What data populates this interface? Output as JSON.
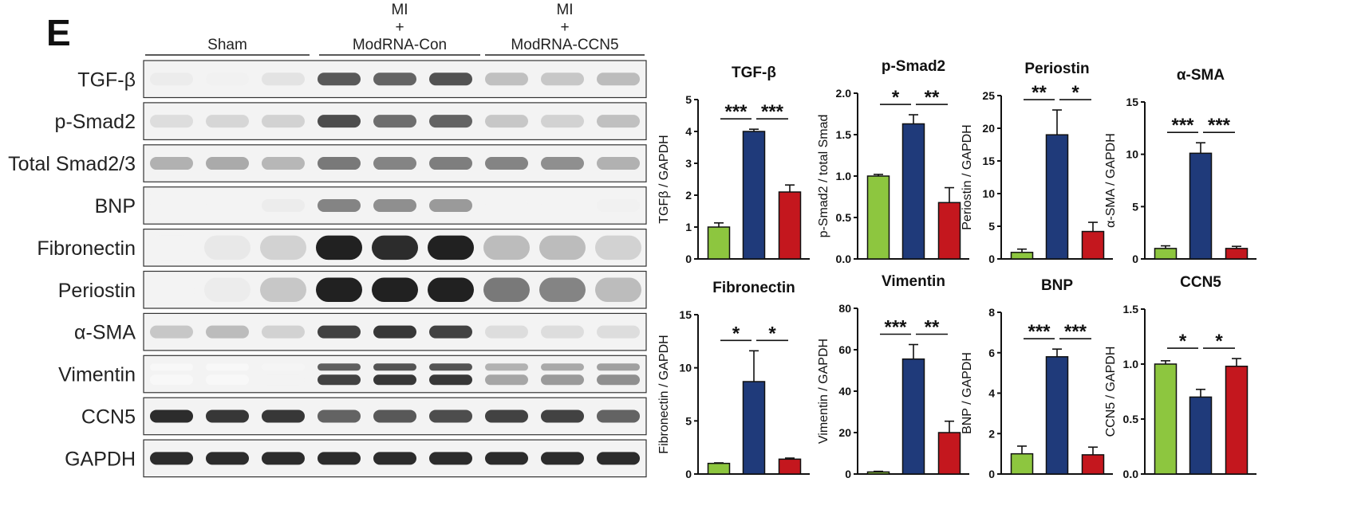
{
  "panel_label": "E",
  "groups": [
    {
      "name": "Sham",
      "lines": [
        "Sham"
      ]
    },
    {
      "name": "MI + ModRNA-Con",
      "lines": [
        "MI",
        "+",
        "ModRNA-Con"
      ]
    },
    {
      "name": "MI + ModRNA-CCN5",
      "lines": [
        "MI",
        "+",
        "ModRNA-CCN5"
      ]
    }
  ],
  "blot_rows": [
    {
      "label": "TGF-β",
      "intensity": [
        0.08,
        0.06,
        0.12,
        0.75,
        0.7,
        0.78,
        0.28,
        0.25,
        0.3
      ],
      "style": "band"
    },
    {
      "label": "p-Smad2",
      "intensity": [
        0.15,
        0.18,
        0.2,
        0.8,
        0.65,
        0.7,
        0.25,
        0.2,
        0.28
      ],
      "style": "band"
    },
    {
      "label": "Total Smad2/3",
      "intensity": [
        0.35,
        0.38,
        0.32,
        0.6,
        0.55,
        0.58,
        0.55,
        0.5,
        0.35
      ],
      "style": "band"
    },
    {
      "label": "BNP",
      "intensity": [
        0.05,
        0.05,
        0.08,
        0.55,
        0.5,
        0.45,
        0.05,
        0.05,
        0.06
      ],
      "style": "band"
    },
    {
      "label": "Fibronectin",
      "intensity": [
        0.05,
        0.1,
        0.2,
        1.0,
        0.95,
        1.0,
        0.3,
        0.3,
        0.2
      ],
      "style": "thick"
    },
    {
      "label": "Periostin",
      "intensity": [
        0.05,
        0.08,
        0.25,
        1.0,
        1.0,
        1.0,
        0.6,
        0.55,
        0.3
      ],
      "style": "thick"
    },
    {
      "label": "α-SMA",
      "intensity": [
        0.25,
        0.3,
        0.2,
        0.85,
        0.9,
        0.85,
        0.15,
        0.15,
        0.15
      ],
      "style": "band"
    },
    {
      "label": "Vimentin",
      "intensity": [
        0.03,
        0.03,
        0.05,
        0.85,
        0.9,
        0.9,
        0.4,
        0.45,
        0.5
      ],
      "style": "double"
    },
    {
      "label": "CCN5",
      "intensity": [
        0.95,
        0.9,
        0.9,
        0.7,
        0.75,
        0.8,
        0.85,
        0.85,
        0.7
      ],
      "style": "band"
    },
    {
      "label": "GAPDH",
      "intensity": [
        0.95,
        0.95,
        0.95,
        0.95,
        0.95,
        0.95,
        0.95,
        0.95,
        0.95
      ],
      "style": "band"
    }
  ],
  "colors": {
    "sham": "#8dc63f",
    "con": "#1f3a7a",
    "ccn5": "#c4171e"
  },
  "chart_data": [
    {
      "type": "bar",
      "title": "TGF-β",
      "ylabel": "TGFβ / GAPDH",
      "ylim": [
        0,
        5
      ],
      "yticks": [
        "0",
        "1",
        "2",
        "3",
        "4",
        "5"
      ],
      "values": [
        1.0,
        4.0,
        2.1
      ],
      "errors": [
        0.13,
        0.07,
        0.22
      ],
      "sig": [
        "***",
        "***"
      ]
    },
    {
      "type": "bar",
      "title": "p-Smad2",
      "ylabel": "p-Smad2 / total Smad",
      "ylim": [
        0,
        2
      ],
      "yticks": [
        "0.0",
        "0.5",
        "1.0",
        "1.5",
        "2.0"
      ],
      "values": [
        1.0,
        1.63,
        0.68
      ],
      "errors": [
        0.02,
        0.11,
        0.18
      ],
      "sig": [
        "*",
        "**"
      ]
    },
    {
      "type": "bar",
      "title": "Periostin",
      "ylabel": "Periostin / GAPDH",
      "ylim": [
        0,
        25
      ],
      "yticks": [
        "0",
        "5",
        "10",
        "15",
        "20",
        "25"
      ],
      "values": [
        1.0,
        19.0,
        4.2
      ],
      "errors": [
        0.5,
        3.8,
        1.4
      ],
      "sig": [
        "**",
        "*"
      ]
    },
    {
      "type": "bar",
      "title": "α-SMA",
      "ylabel": "α-SMA / GAPDH",
      "ylim": [
        0,
        15
      ],
      "yticks": [
        "0",
        "5",
        "10",
        "15"
      ],
      "values": [
        1.0,
        10.1,
        1.0
      ],
      "errors": [
        0.25,
        1.0,
        0.2
      ],
      "sig": [
        "***",
        "***"
      ]
    },
    {
      "type": "bar",
      "title": "Fibronectin",
      "ylabel": "Fibronectin / GAPDH",
      "ylim": [
        0,
        15
      ],
      "yticks": [
        "0",
        "5",
        "10",
        "15"
      ],
      "values": [
        1.0,
        8.7,
        1.4
      ],
      "errors": [
        0.05,
        2.9,
        0.1
      ],
      "sig": [
        "*",
        "*"
      ]
    },
    {
      "type": "bar",
      "title": "Vimentin",
      "ylabel": "Vimentin / GAPDH",
      "ylim": [
        0,
        80
      ],
      "yticks": [
        "0",
        "20",
        "40",
        "60",
        "80"
      ],
      "values": [
        1.0,
        55.5,
        20.0
      ],
      "errors": [
        0.3,
        7.0,
        5.5
      ],
      "sig": [
        "***",
        "**"
      ]
    },
    {
      "type": "bar",
      "title": "BNP",
      "ylabel": "BNP / GAPDH",
      "ylim": [
        0,
        8
      ],
      "yticks": [
        "0",
        "2",
        "4",
        "6",
        "8"
      ],
      "values": [
        1.0,
        5.8,
        0.95
      ],
      "errors": [
        0.38,
        0.38,
        0.38
      ],
      "sig": [
        "***",
        "***"
      ]
    },
    {
      "type": "bar",
      "title": "CCN5",
      "ylabel": "CCN5 / GAPDH",
      "ylim": [
        0,
        1.5
      ],
      "yticks": [
        "0.0",
        "0.5",
        "1.0",
        "1.5"
      ],
      "values": [
        1.0,
        0.7,
        0.98
      ],
      "errors": [
        0.03,
        0.07,
        0.07
      ],
      "sig": [
        "*",
        "*"
      ]
    }
  ]
}
